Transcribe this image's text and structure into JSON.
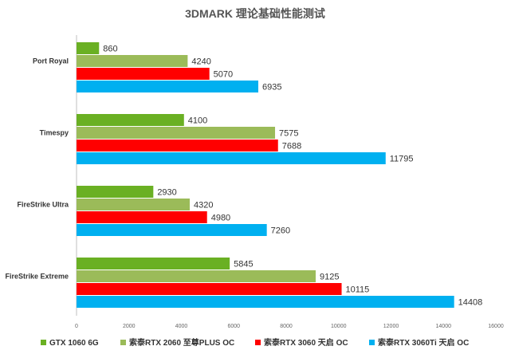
{
  "chart_data": {
    "type": "bar",
    "orientation": "horizontal",
    "title": "3DMARK 理论基础性能测试",
    "categories": [
      "Port Royal",
      "Timespy",
      "FireStrike Ultra",
      "FireStrike Extreme"
    ],
    "series": [
      {
        "name": "GTX 1060 6G",
        "color": "#6ab023",
        "values": [
          860,
          4100,
          2930,
          5845
        ]
      },
      {
        "name": "索泰RTX 2060 至尊PLUS OC",
        "color": "#9bbb59",
        "values": [
          4240,
          7575,
          4320,
          9125
        ]
      },
      {
        "name": "索泰RTX 3060 天启 OC",
        "color": "#ff0000",
        "values": [
          5070,
          7688,
          4980,
          10115
        ]
      },
      {
        "name": "索泰RTX 3060Ti 天启 OC",
        "color": "#00b0f0",
        "values": [
          6935,
          11795,
          7260,
          14408
        ]
      }
    ],
    "xlim": [
      0,
      16000
    ],
    "xticks": [
      0,
      2000,
      4000,
      6000,
      8000,
      10000,
      12000,
      14000,
      16000
    ],
    "xlabel": "",
    "ylabel": "",
    "legend": "bottom",
    "grid": true
  }
}
